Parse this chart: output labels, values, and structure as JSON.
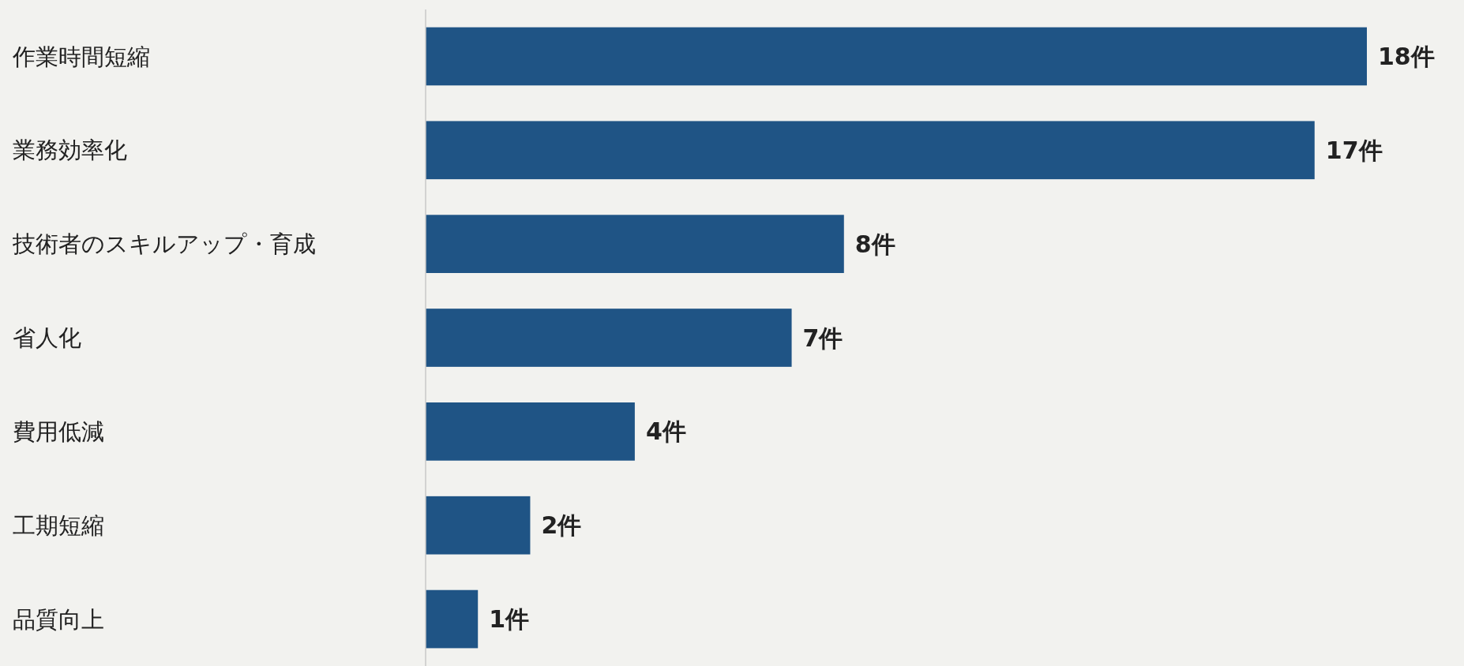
{
  "chart_data": {
    "type": "bar",
    "orientation": "horizontal",
    "categories": [
      "作業時間短縮",
      "業務効率化",
      "技術者のスキルアップ・育成",
      "省人化",
      "費用低減",
      "工期短縮",
      "品質向上"
    ],
    "values": [
      18,
      17,
      8,
      7,
      4,
      2,
      1
    ],
    "value_labels": [
      "18件",
      "17件",
      "8件",
      "7件",
      "4件",
      "2件",
      "1件"
    ],
    "color": "#1f5485"
  }
}
